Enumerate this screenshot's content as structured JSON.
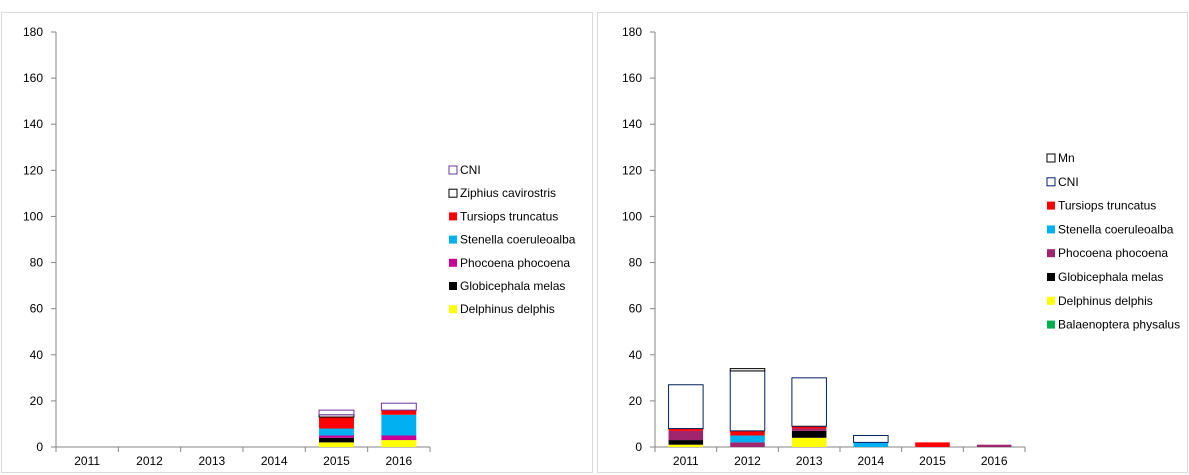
{
  "chart_data": [
    {
      "type": "bar",
      "stacked": true,
      "categories": [
        "2011",
        "2012",
        "2013",
        "2014",
        "2015",
        "2016"
      ],
      "ylim": [
        0,
        180
      ],
      "yticks": [
        "0",
        "20",
        "40",
        "60",
        "80",
        "100",
        "120",
        "140",
        "160",
        "180"
      ],
      "legend_position": "right",
      "series": [
        {
          "name": "Delphinus delphis",
          "color": "#ffff00",
          "values": [
            0,
            0,
            0,
            0,
            2,
            3
          ]
        },
        {
          "name": "Globicephala melas",
          "color": "#000000",
          "values": [
            0,
            0,
            0,
            0,
            2,
            0
          ]
        },
        {
          "name": "Phocoena phocoena",
          "color": "#cc0099",
          "values": [
            0,
            0,
            0,
            0,
            1,
            2
          ]
        },
        {
          "name": "Stenella coeruleoalba",
          "color": "#00b0f0",
          "values": [
            0,
            0,
            0,
            0,
            3,
            9
          ]
        },
        {
          "name": "Tursiops truncatus",
          "color": "#ff0000",
          "values": [
            0,
            0,
            0,
            0,
            5,
            2
          ]
        },
        {
          "name": "Ziphius cavirostris",
          "color": "#ffffff",
          "edge": "#000000",
          "values": [
            0,
            0,
            0,
            0,
            1,
            0
          ]
        },
        {
          "name": "CNI",
          "color": "#ffffff",
          "edge": "#7030a0",
          "values": [
            0,
            0,
            0,
            0,
            2,
            3
          ]
        }
      ]
    },
    {
      "type": "bar",
      "stacked": true,
      "categories": [
        "2011",
        "2012",
        "2013",
        "2014",
        "2015",
        "2016"
      ],
      "ylim": [
        0,
        180
      ],
      "yticks": [
        "0",
        "20",
        "40",
        "60",
        "80",
        "100",
        "120",
        "140",
        "160",
        "180"
      ],
      "legend_position": "right",
      "series": [
        {
          "name": "Balaenoptera physalus",
          "color": "#00b050",
          "values": [
            0,
            0,
            0,
            0,
            0,
            0
          ]
        },
        {
          "name": "Delphinus delphis",
          "color": "#ffff00",
          "values": [
            1,
            0,
            4,
            0,
            0,
            0
          ]
        },
        {
          "name": "Globicephala melas",
          "color": "#000000",
          "values": [
            2,
            0,
            3,
            0,
            0,
            0
          ]
        },
        {
          "name": "Phocoena phocoena",
          "color": "#a0246e",
          "values": [
            4,
            2,
            1,
            0,
            0,
            1
          ]
        },
        {
          "name": "Stenella coeruleoalba",
          "color": "#00b0f0",
          "values": [
            0,
            3,
            0,
            2,
            0,
            0
          ]
        },
        {
          "name": "Tursiops truncatus",
          "color": "#ff0000",
          "values": [
            1,
            2,
            1,
            0,
            2,
            0
          ]
        },
        {
          "name": "CNI",
          "color": "#ffffff",
          "edge": "#002060",
          "values": [
            19,
            26,
            21,
            3,
            0,
            0
          ]
        },
        {
          "name": "Mn",
          "color": "#ffffff",
          "edge": "#000000",
          "values": [
            0,
            1,
            0,
            0,
            0,
            0
          ]
        }
      ]
    }
  ]
}
